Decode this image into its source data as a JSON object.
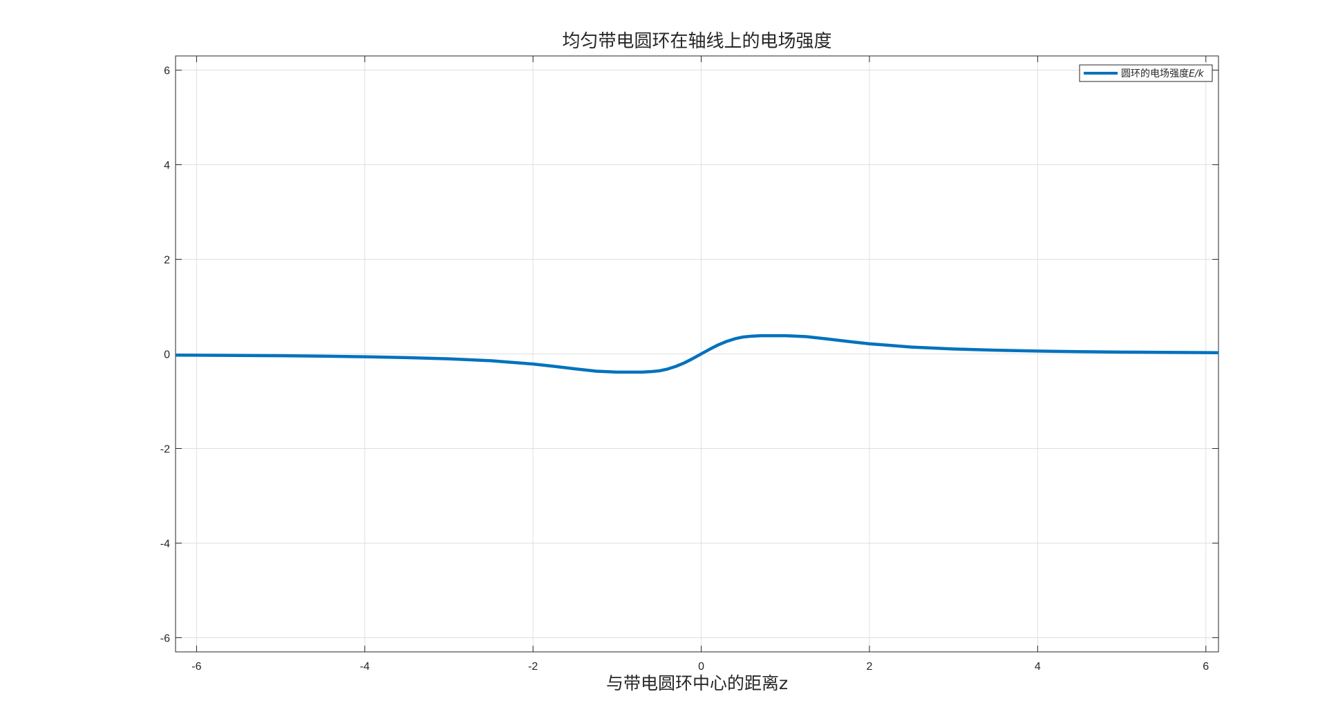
{
  "chart_data": {
    "type": "line",
    "title": "均匀带电圆环在轴线上的电场强度",
    "xlabel": "与带电圆环中心的距离z",
    "ylabel": "",
    "xlim": [
      -6.25,
      6.15
    ],
    "ylim": [
      -6.3,
      6.3
    ],
    "xticks": [
      -6,
      -4,
      -2,
      0,
      2,
      4,
      6
    ],
    "yticks": [
      -6,
      -4,
      -2,
      0,
      2,
      4,
      6
    ],
    "xtick_labels": [
      "-6",
      "-4",
      "-2",
      "0",
      "2",
      "4",
      "6"
    ],
    "ytick_labels": [
      "-6",
      "-4",
      "-2",
      "0",
      "2",
      "4",
      "6"
    ],
    "grid": true,
    "legend_position": "top-right",
    "series": [
      {
        "name_main": "圆环的电场强度",
        "name_italic": "E/k",
        "color": "#0072BD",
        "x": [
          -6.25,
          -6.0,
          -5.5,
          -5.0,
          -4.5,
          -4.0,
          -3.5,
          -3.0,
          -2.5,
          -2.0,
          -1.75,
          -1.5,
          -1.25,
          -1.0,
          -0.9,
          -0.8,
          -0.707,
          -0.6,
          -0.5,
          -0.4,
          -0.3,
          -0.2,
          -0.1,
          0.0,
          0.1,
          0.2,
          0.3,
          0.4,
          0.5,
          0.6,
          0.707,
          0.8,
          0.9,
          1.0,
          1.25,
          1.5,
          1.75,
          2.0,
          2.5,
          3.0,
          3.5,
          4.0,
          4.5,
          5.0,
          5.5,
          6.0,
          6.15
        ],
        "y": [
          -0.025,
          -0.027,
          -0.032,
          -0.039,
          -0.048,
          -0.06,
          -0.078,
          -0.104,
          -0.145,
          -0.214,
          -0.263,
          -0.316,
          -0.365,
          -0.385,
          -0.385,
          -0.385,
          -0.385,
          -0.375,
          -0.358,
          -0.32,
          -0.263,
          -0.189,
          -0.098,
          0.0,
          0.098,
          0.189,
          0.263,
          0.32,
          0.358,
          0.375,
          0.385,
          0.385,
          0.385,
          0.385,
          0.365,
          0.316,
          0.263,
          0.214,
          0.145,
          0.104,
          0.078,
          0.06,
          0.048,
          0.039,
          0.032,
          0.027,
          0.026
        ]
      }
    ]
  }
}
